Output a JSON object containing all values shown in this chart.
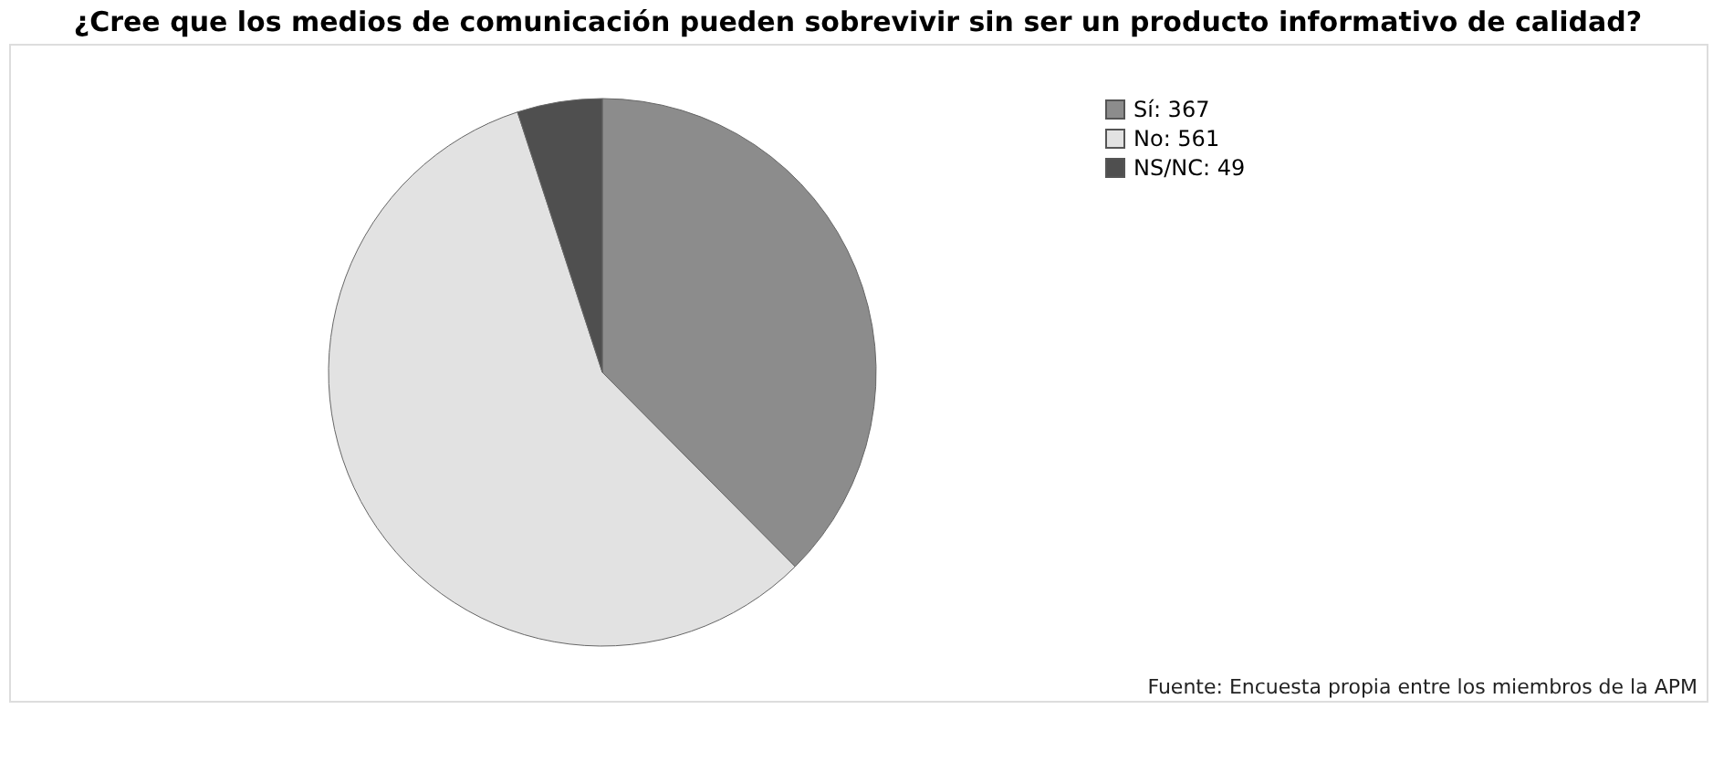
{
  "chart_data": {
    "type": "pie",
    "title": "¿Cree que los medios de comunicación pueden sobrevivir sin ser un producto informativo de calidad?",
    "categories": [
      "Sí: 367",
      "No: 561",
      "NS/NC: 49"
    ],
    "values": [
      367,
      561,
      49
    ],
    "colors": [
      "#8c8c8c",
      "#e2e2e2",
      "#4f4f4f"
    ],
    "legend": "top right",
    "annotations": [
      "Fuente: Encuesta propia entre los miembros de la APM"
    ]
  }
}
